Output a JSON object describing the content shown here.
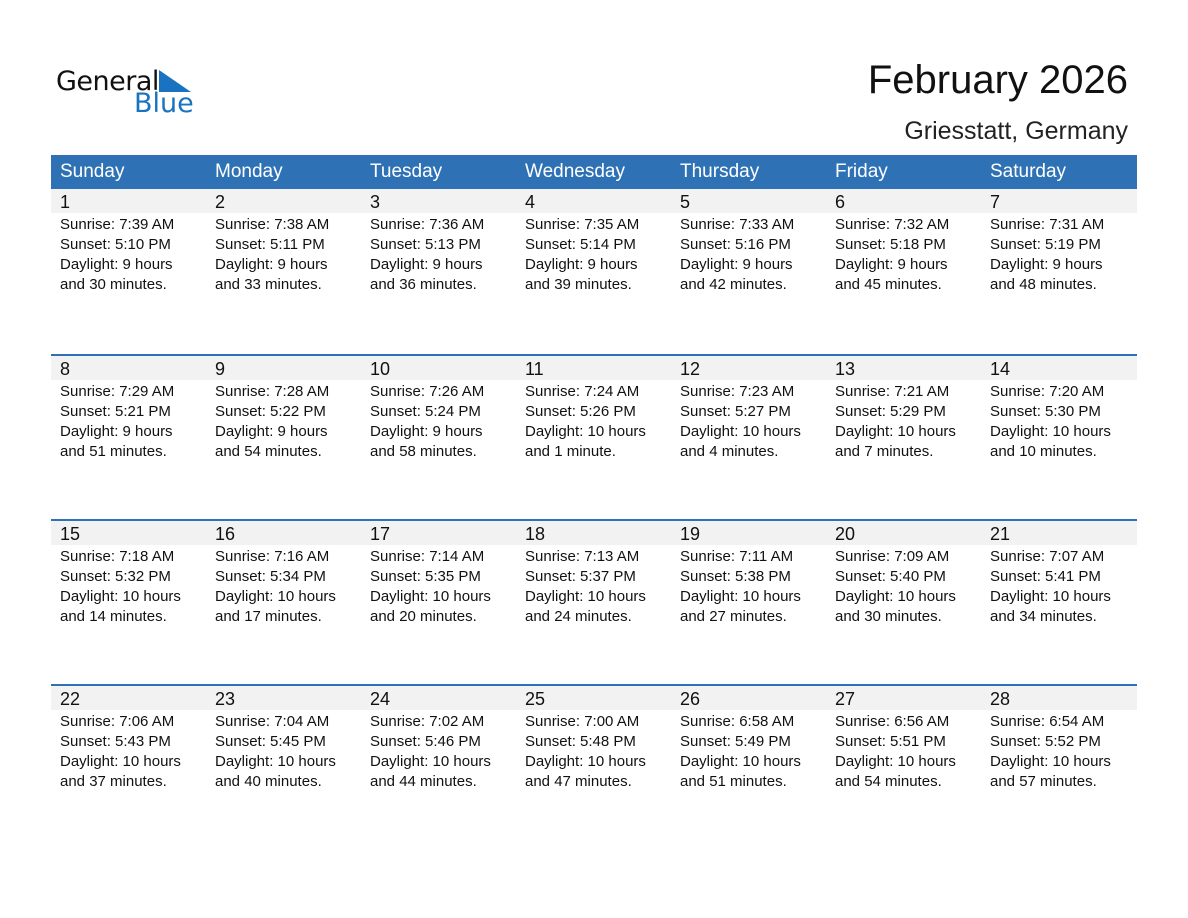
{
  "logo": {
    "general": "General",
    "blue": "Blue"
  },
  "title": "February 2026",
  "location": "Griesstatt, Germany",
  "colors": {
    "header": "#2e72b5",
    "accent": "#1a73c0",
    "band": "#f2f2f2"
  },
  "weekdays": [
    "Sunday",
    "Monday",
    "Tuesday",
    "Wednesday",
    "Thursday",
    "Friday",
    "Saturday"
  ],
  "weeks": [
    [
      [
        "1",
        "Sunrise: 7:39 AM",
        "Sunset: 5:10 PM",
        "Daylight: 9 hours",
        "and 30 minutes."
      ],
      [
        "2",
        "Sunrise: 7:38 AM",
        "Sunset: 5:11 PM",
        "Daylight: 9 hours",
        "and 33 minutes."
      ],
      [
        "3",
        "Sunrise: 7:36 AM",
        "Sunset: 5:13 PM",
        "Daylight: 9 hours",
        "and 36 minutes."
      ],
      [
        "4",
        "Sunrise: 7:35 AM",
        "Sunset: 5:14 PM",
        "Daylight: 9 hours",
        "and 39 minutes."
      ],
      [
        "5",
        "Sunrise: 7:33 AM",
        "Sunset: 5:16 PM",
        "Daylight: 9 hours",
        "and 42 minutes."
      ],
      [
        "6",
        "Sunrise: 7:32 AM",
        "Sunset: 5:18 PM",
        "Daylight: 9 hours",
        "and 45 minutes."
      ],
      [
        "7",
        "Sunrise: 7:31 AM",
        "Sunset: 5:19 PM",
        "Daylight: 9 hours",
        "and 48 minutes."
      ]
    ],
    [
      [
        "8",
        "Sunrise: 7:29 AM",
        "Sunset: 5:21 PM",
        "Daylight: 9 hours",
        "and 51 minutes."
      ],
      [
        "9",
        "Sunrise: 7:28 AM",
        "Sunset: 5:22 PM",
        "Daylight: 9 hours",
        "and 54 minutes."
      ],
      [
        "10",
        "Sunrise: 7:26 AM",
        "Sunset: 5:24 PM",
        "Daylight: 9 hours",
        "and 58 minutes."
      ],
      [
        "11",
        "Sunrise: 7:24 AM",
        "Sunset: 5:26 PM",
        "Daylight: 10 hours",
        "and 1 minute."
      ],
      [
        "12",
        "Sunrise: 7:23 AM",
        "Sunset: 5:27 PM",
        "Daylight: 10 hours",
        "and 4 minutes."
      ],
      [
        "13",
        "Sunrise: 7:21 AM",
        "Sunset: 5:29 PM",
        "Daylight: 10 hours",
        "and 7 minutes."
      ],
      [
        "14",
        "Sunrise: 7:20 AM",
        "Sunset: 5:30 PM",
        "Daylight: 10 hours",
        "and 10 minutes."
      ]
    ],
    [
      [
        "15",
        "Sunrise: 7:18 AM",
        "Sunset: 5:32 PM",
        "Daylight: 10 hours",
        "and 14 minutes."
      ],
      [
        "16",
        "Sunrise: 7:16 AM",
        "Sunset: 5:34 PM",
        "Daylight: 10 hours",
        "and 17 minutes."
      ],
      [
        "17",
        "Sunrise: 7:14 AM",
        "Sunset: 5:35 PM",
        "Daylight: 10 hours",
        "and 20 minutes."
      ],
      [
        "18",
        "Sunrise: 7:13 AM",
        "Sunset: 5:37 PM",
        "Daylight: 10 hours",
        "and 24 minutes."
      ],
      [
        "19",
        "Sunrise: 7:11 AM",
        "Sunset: 5:38 PM",
        "Daylight: 10 hours",
        "and 27 minutes."
      ],
      [
        "20",
        "Sunrise: 7:09 AM",
        "Sunset: 5:40 PM",
        "Daylight: 10 hours",
        "and 30 minutes."
      ],
      [
        "21",
        "Sunrise: 7:07 AM",
        "Sunset: 5:41 PM",
        "Daylight: 10 hours",
        "and 34 minutes."
      ]
    ],
    [
      [
        "22",
        "Sunrise: 7:06 AM",
        "Sunset: 5:43 PM",
        "Daylight: 10 hours",
        "and 37 minutes."
      ],
      [
        "23",
        "Sunrise: 7:04 AM",
        "Sunset: 5:45 PM",
        "Daylight: 10 hours",
        "and 40 minutes."
      ],
      [
        "24",
        "Sunrise: 7:02 AM",
        "Sunset: 5:46 PM",
        "Daylight: 10 hours",
        "and 44 minutes."
      ],
      [
        "25",
        "Sunrise: 7:00 AM",
        "Sunset: 5:48 PM",
        "Daylight: 10 hours",
        "and 47 minutes."
      ],
      [
        "26",
        "Sunrise: 6:58 AM",
        "Sunset: 5:49 PM",
        "Daylight: 10 hours",
        "and 51 minutes."
      ],
      [
        "27",
        "Sunrise: 6:56 AM",
        "Sunset: 5:51 PM",
        "Daylight: 10 hours",
        "and 54 minutes."
      ],
      [
        "28",
        "Sunrise: 6:54 AM",
        "Sunset: 5:52 PM",
        "Daylight: 10 hours",
        "and 57 minutes."
      ]
    ]
  ]
}
